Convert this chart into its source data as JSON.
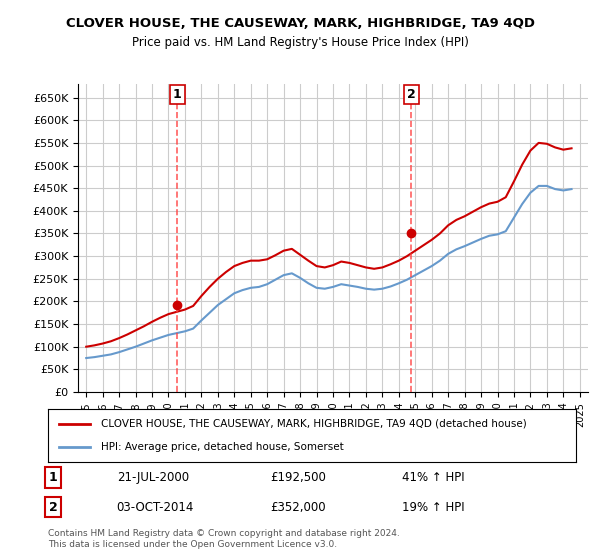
{
  "title": "CLOVER HOUSE, THE CAUSEWAY, MARK, HIGHBRIDGE, TA9 4QD",
  "subtitle": "Price paid vs. HM Land Registry's House Price Index (HPI)",
  "red_label": "CLOVER HOUSE, THE CAUSEWAY, MARK, HIGHBRIDGE, TA9 4QD (detached house)",
  "blue_label": "HPI: Average price, detached house, Somerset",
  "transaction1_date": "21-JUL-2000",
  "transaction1_price": "£192,500",
  "transaction1_hpi": "41% ↑ HPI",
  "transaction2_date": "03-OCT-2014",
  "transaction2_price": "£352,000",
  "transaction2_hpi": "19% ↑ HPI",
  "marker1_x": 2000.54,
  "marker1_y": 192500,
  "marker2_x": 2014.75,
  "marker2_y": 352000,
  "vline1_x": 2000.54,
  "vline2_x": 2014.75,
  "ylim": [
    0,
    680000
  ],
  "xlim_start": 1994.5,
  "xlim_end": 2025.5,
  "yticks": [
    0,
    50000,
    100000,
    150000,
    200000,
    250000,
    300000,
    350000,
    400000,
    450000,
    500000,
    550000,
    600000,
    650000
  ],
  "footer": "Contains HM Land Registry data © Crown copyright and database right 2024.\nThis data is licensed under the Open Government Licence v3.0.",
  "background_color": "#ffffff",
  "grid_color": "#cccccc",
  "red_color": "#cc0000",
  "blue_color": "#6699cc",
  "vline_color": "#ff4444"
}
